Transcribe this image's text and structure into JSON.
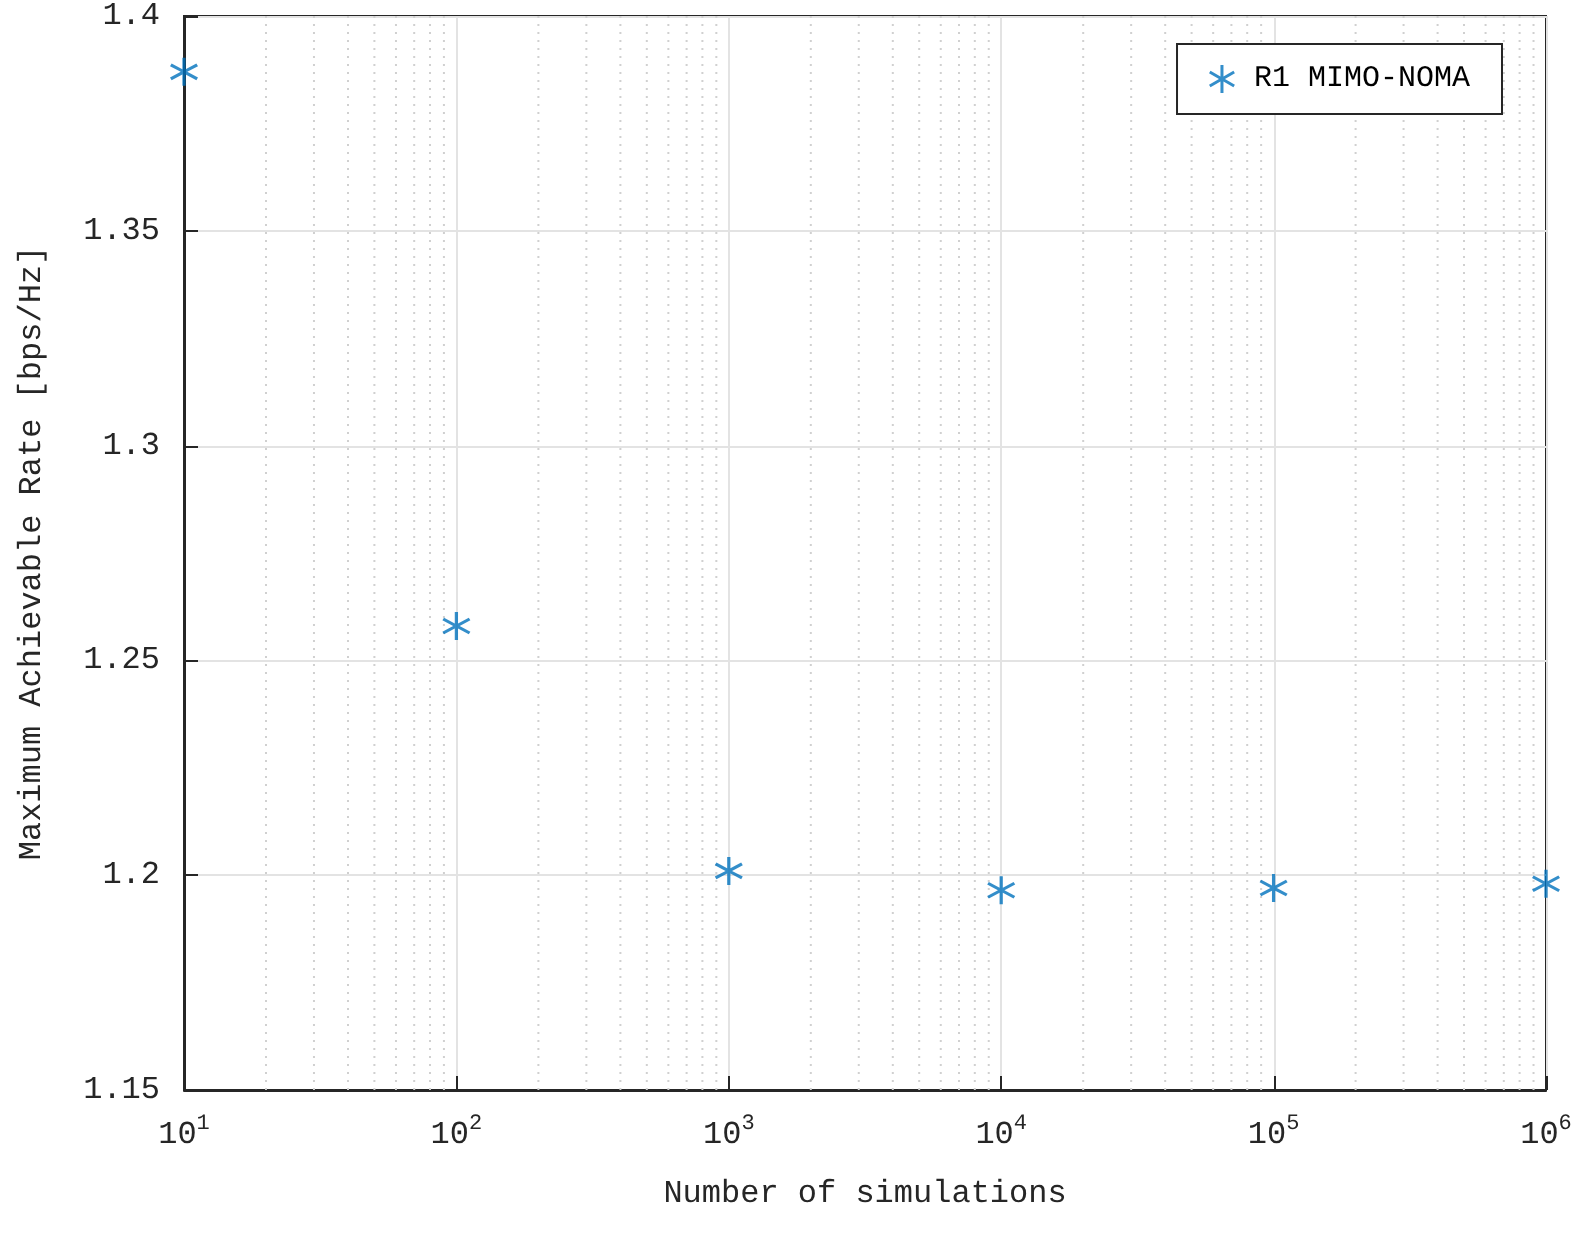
{
  "chart_data": {
    "type": "scatter",
    "xlabel": "Number of simulations",
    "ylabel": "Maximum Achievable Rate [bps/Hz]",
    "x": [
      10,
      100,
      1000,
      10000,
      100000,
      1000000
    ],
    "series": [
      {
        "name": "R1 MIMO-NOMA",
        "color": "#0072bd",
        "values": [
          1.387,
          1.258,
          1.201,
          1.1965,
          1.197,
          1.198
        ]
      }
    ],
    "log": "x",
    "xlim": [
      10,
      1000000
    ],
    "xticks": [
      {
        "value": 10,
        "label": "10$^{1}$"
      },
      {
        "value": 100,
        "label": "10$^{2}$"
      },
      {
        "value": 1000,
        "label": "10$^{3}$"
      },
      {
        "value": 10000,
        "label": "10$^{4}$"
      },
      {
        "value": 100000,
        "label": "10$^{5}$"
      },
      {
        "value": 1000000,
        "label": "10$^{6}$"
      }
    ],
    "ylim": [
      1.15,
      1.4
    ],
    "yticks": [
      1.15,
      1.2,
      1.25,
      1.3,
      1.35,
      1.4
    ],
    "grid": true,
    "legend": "top right",
    "marker": "star"
  }
}
